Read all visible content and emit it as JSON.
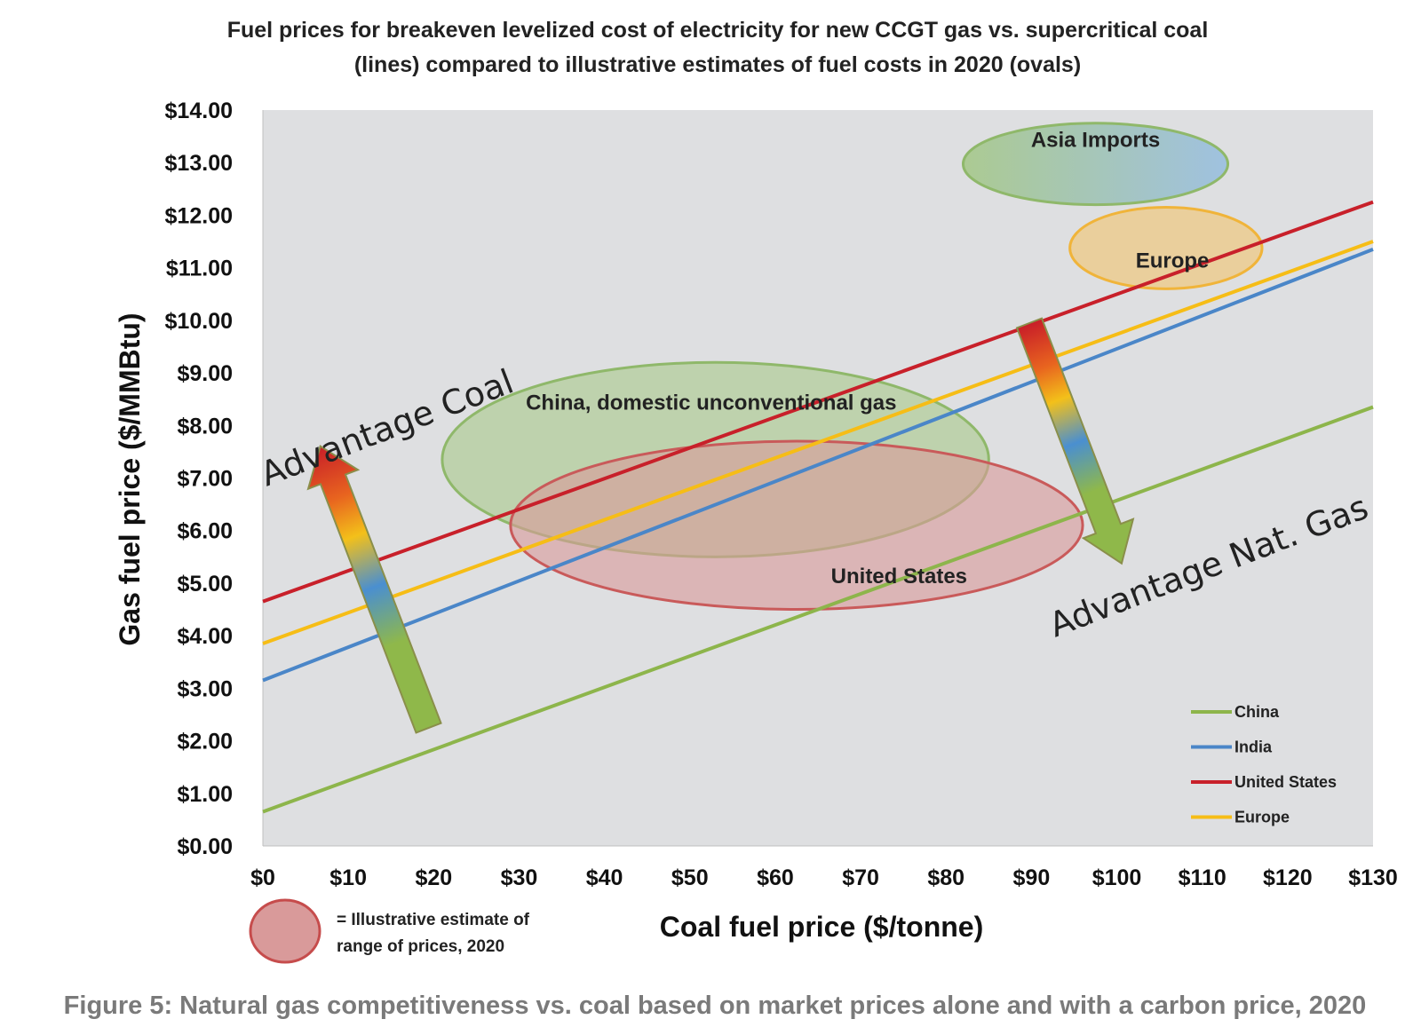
{
  "chart_data": {
    "type": "line",
    "title": "Fuel prices for breakeven levelized cost of electricity for new CCGT gas vs. supercritical coal",
    "subtitle": "(lines) compared to illustrative estimates of fuel costs in 2020 (ovals)",
    "xlabel": "Coal fuel price ($/tonne)",
    "ylabel": "Gas fuel price ($/MMBtu)",
    "xlim": [
      0,
      130
    ],
    "ylim": [
      0,
      14
    ],
    "x_ticks": [
      "$0",
      "$10",
      "$20",
      "$30",
      "$40",
      "$50",
      "$60",
      "$70",
      "$80",
      "$90",
      "$100",
      "$110",
      "$120",
      "$130"
    ],
    "y_ticks": [
      "$0.00",
      "$1.00",
      "$2.00",
      "$3.00",
      "$4.00",
      "$5.00",
      "$6.00",
      "$7.00",
      "$8.00",
      "$9.00",
      "$10.00",
      "$11.00",
      "$12.00",
      "$13.00",
      "$14.00"
    ],
    "grid": false,
    "legend_position": "bottom-right",
    "series": [
      {
        "name": "China",
        "color": "#8db54b",
        "x": [
          0,
          130
        ],
        "y": [
          0.65,
          8.35
        ]
      },
      {
        "name": "India",
        "color": "#4a86c8",
        "x": [
          0,
          130
        ],
        "y": [
          3.15,
          11.35
        ]
      },
      {
        "name": "United States",
        "color": "#c8202a",
        "x": [
          0,
          130
        ],
        "y": [
          4.65,
          12.25
        ]
      },
      {
        "name": "Europe",
        "color": "#f6bd16",
        "x": [
          0,
          130
        ],
        "y": [
          3.85,
          11.5
        ]
      }
    ],
    "ovals": [
      {
        "label": "Asia Imports",
        "x_range": [
          82,
          113
        ],
        "y_range": [
          12.2,
          13.75
        ],
        "color": "#9fc08e"
      },
      {
        "label": "Europe",
        "x_range": [
          94.5,
          117
        ],
        "y_range": [
          10.6,
          12.15
        ],
        "color": "#f2c46e"
      },
      {
        "label": "China, domestic unconventional gas",
        "x_range": [
          21,
          85
        ],
        "y_range": [
          5.5,
          9.2
        ],
        "color": "#a8c98a"
      },
      {
        "label": "United States",
        "x_range": [
          29,
          96
        ],
        "y_range": [
          4.5,
          7.7
        ],
        "color": "#d99a9a"
      }
    ],
    "annotations": [
      "Advantage Coal",
      "Advantage Nat. Gas"
    ]
  },
  "key": {
    "line1": "= Illustrative estimate of",
    "line2": "range of  prices, 2020",
    "color": "#d99a9a"
  },
  "caption": "Figure 5: Natural gas competitiveness vs. coal based on market prices alone and with a carbon price, 2020",
  "colors": {
    "plot_background": "#dedfe1",
    "caption_text": "#7a7a7a"
  }
}
